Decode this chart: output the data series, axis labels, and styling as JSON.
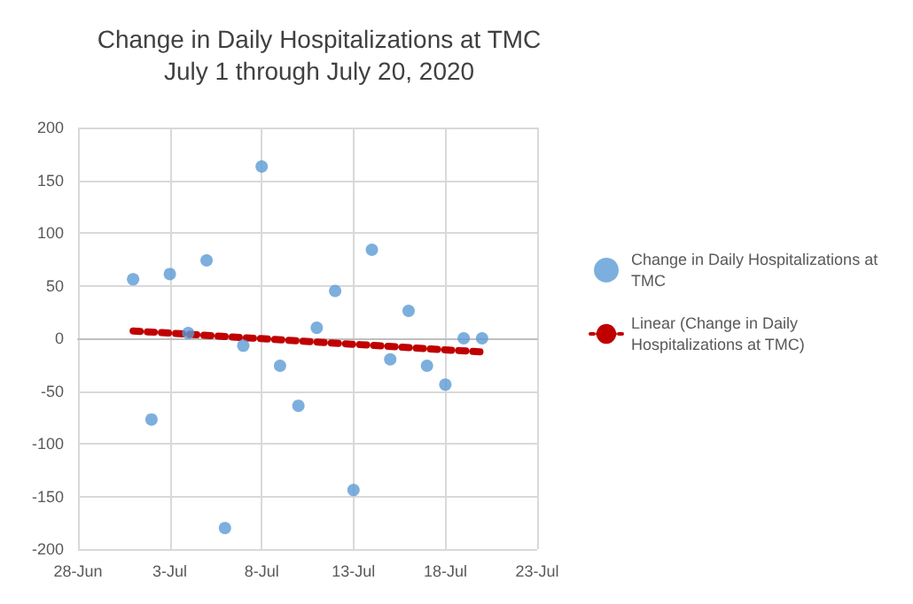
{
  "chart_data": {
    "type": "scatter",
    "title": "Change in Daily Hospitalizations at TMC",
    "subtitle": "July 1 through July 20, 2020",
    "x": [
      "2020-07-01",
      "2020-07-02",
      "2020-07-03",
      "2020-07-04",
      "2020-07-05",
      "2020-07-06",
      "2020-07-07",
      "2020-07-08",
      "2020-07-09",
      "2020-07-10",
      "2020-07-11",
      "2020-07-12",
      "2020-07-13",
      "2020-07-14",
      "2020-07-15",
      "2020-07-16",
      "2020-07-17",
      "2020-07-18",
      "2020-07-19",
      "2020-07-20"
    ],
    "series": [
      {
        "name": "Change in Daily Hospitalizations at TMC",
        "color": "#5b9bd5",
        "marker": "circle",
        "values": [
          56,
          -77,
          61,
          5,
          74,
          -180,
          -7,
          163,
          -26,
          -64,
          10,
          45,
          -144,
          84,
          -20,
          26,
          -26,
          -44,
          0,
          0
        ]
      },
      {
        "name": "Linear (Change in Daily Hospitalizations at TMC)",
        "type": "line",
        "color": "#c00000",
        "line_style": "dotted",
        "marker": "none",
        "x": [
          "2020-07-01",
          "2020-07-20"
        ],
        "values": [
          7,
          -13
        ]
      }
    ],
    "xlim": [
      "2020-06-28",
      "2020-07-23"
    ],
    "xticks": [
      {
        "value": "2020-06-28",
        "label": "28-Jun"
      },
      {
        "value": "2020-07-03",
        "label": "3-Jul"
      },
      {
        "value": "2020-07-08",
        "label": "8-Jul"
      },
      {
        "value": "2020-07-13",
        "label": "13-Jul"
      },
      {
        "value": "2020-07-18",
        "label": "18-Jul"
      },
      {
        "value": "2020-07-23",
        "label": "23-Jul"
      }
    ],
    "ylim": [
      -200,
      200
    ],
    "yticks": [
      -200,
      -150,
      -100,
      -50,
      0,
      50,
      100,
      150,
      200
    ],
    "grid": true,
    "legend": "right"
  }
}
